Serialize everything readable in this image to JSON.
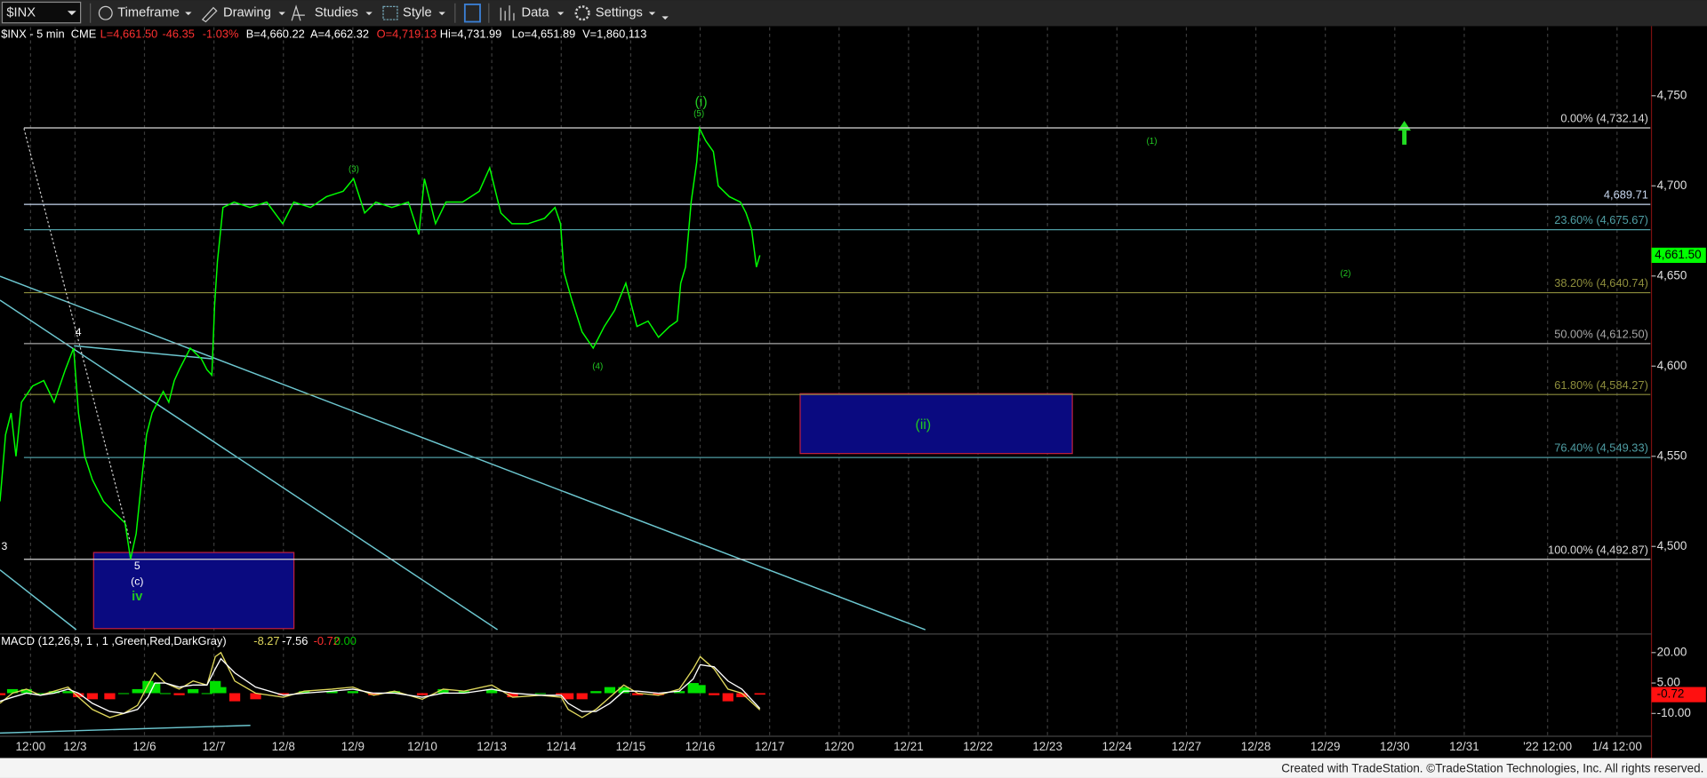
{
  "toolbar": {
    "symbol": "$INX",
    "buttons": [
      "Timeframe",
      "Drawing",
      "Studies",
      "Style",
      "Data",
      "Settings"
    ]
  },
  "footer": "Created with TradeStation. ©TradeStation Technologies, Inc. All rights reserved.",
  "chart_data": [
    {
      "type": "line",
      "header": [
        {
          "text": "$INX - 5 min  CME",
          "color": "#ffffff"
        },
        {
          "text": "L=4,661.50",
          "color": "#ff3030"
        },
        {
          "text": "-46.35",
          "color": "#ff3030"
        },
        {
          "text": "-1.03%",
          "color": "#ff3030"
        },
        {
          "text": "B=4,660.22",
          "color": "#ffffff"
        },
        {
          "text": "A=4,662.32",
          "color": "#ffffff"
        },
        {
          "text": "O=4,719.13",
          "color": "#ff3030"
        },
        {
          "text": "Hi=4,731.99",
          "color": "#ffffff"
        },
        {
          "text": "Lo=4,651.89",
          "color": "#ffffff"
        },
        {
          "text": "V=1,860,113",
          "color": "#ffffff"
        }
      ],
      "x": [
        -0.08,
        0.0,
        0.08,
        0.15,
        0.23,
        0.39,
        0.55,
        0.7,
        0.86,
        0.98,
        1.05,
        1.14,
        1.25,
        1.41,
        1.56,
        1.72,
        1.8,
        1.88,
        1.96,
        2.03,
        2.11,
        2.19,
        2.27,
        2.35,
        2.43,
        2.5,
        2.58,
        2.66,
        2.74,
        2.82,
        2.9,
        2.97,
        3.01,
        3.05,
        3.13,
        3.29,
        3.52,
        3.76,
        3.99,
        4.15,
        4.39,
        4.62,
        4.86,
        5.01,
        5.17,
        5.33,
        5.56,
        5.8,
        5.95,
        6.03,
        6.19,
        6.34,
        6.58,
        6.82,
        6.97,
        7.13,
        7.29,
        7.52,
        7.76,
        7.91,
        7.99,
        8.04,
        8.15,
        8.3,
        8.46,
        8.62,
        8.77,
        8.93,
        9.09,
        9.25,
        9.4,
        9.56,
        9.67,
        9.72,
        9.79,
        9.87,
        9.95,
        9.99,
        10.08,
        10.19,
        10.26,
        10.42,
        10.58,
        10.66,
        10.74,
        10.81,
        10.86
      ],
      "series": [
        {
          "color": "#00ff00",
          "values": [
            4525,
            4562,
            4574,
            4550,
            4580,
            4589,
            4592,
            4580,
            4598,
            4610,
            4574,
            4550,
            4537,
            4525,
            4519,
            4513,
            4493,
            4507,
            4537,
            4562,
            4574,
            4580,
            4586,
            4580,
            4592,
            4598,
            4604,
            4610,
            4607,
            4604,
            4598,
            4595,
            4634,
            4658,
            4688,
            4691,
            4688,
            4691,
            4679,
            4691,
            4688,
            4694,
            4697,
            4704,
            4685,
            4691,
            4688,
            4691,
            4673,
            4704,
            4679,
            4691,
            4691,
            4697,
            4710,
            4685,
            4679,
            4679,
            4682,
            4688,
            4679,
            4652,
            4637,
            4619,
            4610,
            4622,
            4631,
            4646,
            4622,
            4625,
            4616,
            4622,
            4625,
            4646,
            4655,
            4691,
            4713,
            4732,
            4725,
            4719,
            4700,
            4694,
            4691,
            4685,
            4676,
            4655,
            4661.5
          ]
        }
      ],
      "xlim": [
        -0.08,
        23.68
      ],
      "xticks": [
        {
          "value": 0.36,
          "label": "12:00"
        },
        {
          "value": 1,
          "label": "12/3"
        },
        {
          "value": 2,
          "label": "12/6"
        },
        {
          "value": 3,
          "label": "12/7"
        },
        {
          "value": 4,
          "label": "12/8"
        },
        {
          "value": 5,
          "label": "12/9"
        },
        {
          "value": 6,
          "label": "12/10"
        },
        {
          "value": 7,
          "label": "12/13"
        },
        {
          "value": 8,
          "label": "12/14"
        },
        {
          "value": 9,
          "label": "12/15"
        },
        {
          "value": 10,
          "label": "12/16"
        },
        {
          "value": 11,
          "label": "12/17"
        },
        {
          "value": 12,
          "label": "12/20"
        },
        {
          "value": 13,
          "label": "12/21"
        },
        {
          "value": 14,
          "label": "12/22"
        },
        {
          "value": 15,
          "label": "12/23"
        },
        {
          "value": 16,
          "label": "12/24"
        },
        {
          "value": 17,
          "label": "12/27"
        },
        {
          "value": 18,
          "label": "12/28"
        },
        {
          "value": 19,
          "label": "12/29"
        },
        {
          "value": 20,
          "label": "12/30"
        },
        {
          "value": 21,
          "label": "12/31"
        },
        {
          "value": 22.2,
          "label": "'22 12:00"
        },
        {
          "value": 23.2,
          "label": "1/4 12:00"
        }
      ],
      "ylim": [
        4452,
        4788
      ],
      "yticks": [
        {
          "value": 4500,
          "label": "4,500"
        },
        {
          "value": 4550,
          "label": "4,550"
        },
        {
          "value": 4600,
          "label": "4,600"
        },
        {
          "value": 4650,
          "label": "4,650"
        },
        {
          "value": 4700,
          "label": "4,700"
        },
        {
          "value": 4750,
          "label": "4,750"
        }
      ],
      "grid": true,
      "levels": [
        {
          "value": 4732.14,
          "label": "0.00% (4,732.14)",
          "color": "#d8d8d8"
        },
        {
          "value": 4689.71,
          "label": "4,689.71",
          "color": "#c8d8f0"
        },
        {
          "value": 4675.67,
          "label": "23.60% (4,675.67)",
          "color": "#4f9ea4"
        },
        {
          "value": 4640.74,
          "label": "38.20% (4,640.74)",
          "color": "#8e8e3c"
        },
        {
          "value": 4612.5,
          "label": "50.00% (4,612.50)",
          "color": "#a8a8a8"
        },
        {
          "value": 4584.27,
          "label": "61.80% (4,584.27)",
          "color": "#8e8e3c"
        },
        {
          "value": 4549.33,
          "label": "76.40% (4,549.33)",
          "color": "#4f9ea4"
        },
        {
          "value": 4492.87,
          "label": "100.00% (4,492.87)",
          "color": "#d8d8d8"
        }
      ],
      "last_price": {
        "value": 4661.5,
        "label": "4,661.50",
        "color": "#00ff00"
      },
      "annotations": [
        "(i)",
        "(5)",
        "(3)",
        "(4)",
        "(1)",
        "(2)",
        "4",
        "3",
        "5",
        "(c)",
        "iv",
        "(ii)"
      ]
    },
    {
      "type": "macd",
      "title": "MACD (12,26,9, 1 , 1 ,Green,Red,DarkGray)",
      "readouts": [
        {
          "text": "-8.27",
          "color": "#e0d85c"
        },
        {
          "text": "-7.56",
          "color": "#ffffff"
        },
        {
          "text": "-0.72",
          "color": "#ff3030"
        },
        {
          "text": "0.00",
          "color": "#00c000"
        }
      ],
      "x": [
        -0.08,
        0.1,
        0.3,
        0.5,
        0.7,
        0.9,
        1.05,
        1.25,
        1.5,
        1.7,
        1.9,
        2.05,
        2.15,
        2.3,
        2.5,
        2.7,
        2.9,
        3.02,
        3.1,
        3.3,
        3.6,
        4.0,
        4.3,
        4.7,
        5.0,
        5.3,
        5.6,
        6.0,
        6.3,
        6.6,
        7.0,
        7.3,
        7.7,
        8.0,
        8.1,
        8.3,
        8.5,
        8.7,
        8.9,
        9.1,
        9.4,
        9.7,
        9.9,
        10.0,
        10.2,
        10.4,
        10.6,
        10.86
      ],
      "series": [
        {
          "color": "#e0d85c",
          "values": [
            -5,
            0,
            2,
            -1,
            1,
            3,
            -2,
            -8,
            -12,
            -10,
            -6,
            4,
            10,
            5,
            2,
            6,
            4,
            18,
            20,
            6,
            0,
            -2,
            1,
            2,
            3,
            -1,
            1,
            -3,
            2,
            1,
            4,
            -2,
            -1,
            -2,
            -8,
            -12,
            -8,
            -2,
            4,
            0,
            -1,
            2,
            12,
            18,
            12,
            2,
            0,
            -8.27
          ]
        },
        {
          "color": "#ffffff",
          "values": [
            -4,
            -2,
            0,
            -1,
            0,
            2,
            0,
            -5,
            -9,
            -10,
            -8,
            -2,
            5,
            5,
            3,
            4,
            4,
            12,
            17,
            10,
            3,
            -1,
            0,
            1,
            2,
            0,
            0,
            -2,
            0,
            0,
            2,
            0,
            -1,
            -1,
            -5,
            -9,
            -9,
            -5,
            1,
            1,
            0,
            1,
            7,
            14,
            13,
            6,
            2,
            -7.56
          ]
        }
      ],
      "histogram": {
        "positive_color": "#00e000",
        "negative_color": "#ff1010",
        "values": [
          -1,
          2,
          2,
          0,
          1,
          1,
          -2,
          -3,
          -3,
          0,
          2,
          6,
          5,
          0,
          -1,
          2,
          0,
          6,
          3,
          -4,
          -3,
          -1,
          1,
          1,
          1,
          -1,
          1,
          -1,
          2,
          1,
          2,
          -2,
          0,
          -1,
          -3,
          -3,
          1,
          3,
          3,
          -1,
          -1,
          1,
          5,
          4,
          -1,
          -4,
          -2,
          -0.72
        ]
      },
      "ylim": [
        -20.7,
        28.6
      ],
      "yticks": [
        {
          "value": -10,
          "label": "-10.00"
        },
        {
          "value": 5,
          "label": "5.00"
        },
        {
          "value": 20,
          "label": "20.00"
        }
      ],
      "last_value": {
        "value": -0.72,
        "label": "-0.72",
        "color": "#ff1010"
      }
    }
  ]
}
